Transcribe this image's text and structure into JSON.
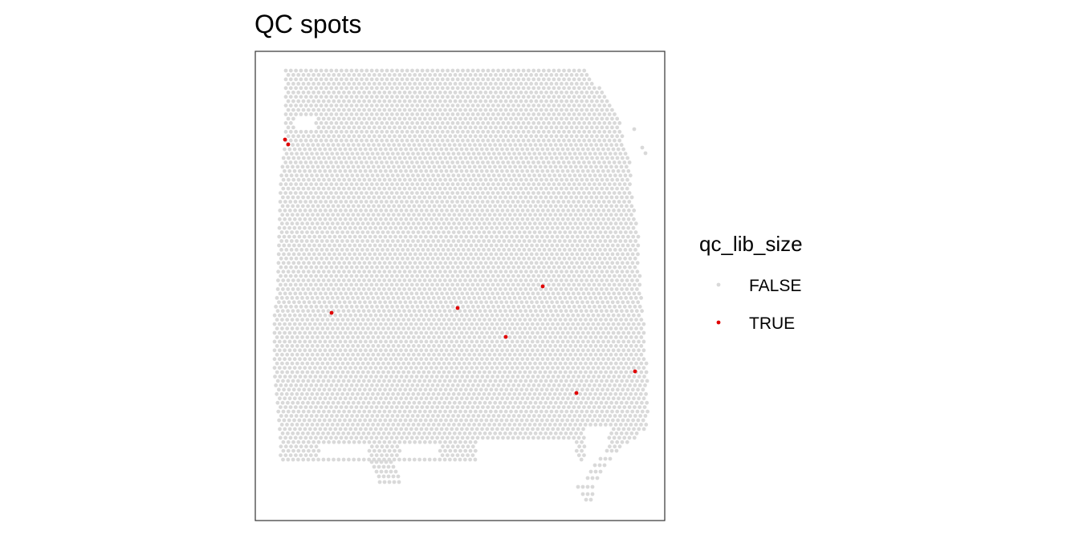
{
  "chart_data": {
    "type": "scatter",
    "title": "QC spots",
    "xlabel": "",
    "ylabel": "",
    "grid": false,
    "legend": {
      "title": "qc_lib_size",
      "placement": "right",
      "entries": [
        {
          "label": "FALSE",
          "color": "#d9d9d9"
        },
        {
          "label": "TRUE",
          "color": "#e00000"
        }
      ]
    },
    "series": [
      {
        "name": "FALSE",
        "color": "#d9d9d9",
        "description_points": "hexagonal array of spots covering the tissue (~2500 spots)"
      },
      {
        "name": "TRUE",
        "color": "#e00000",
        "points": [
          [
            37,
            110
          ],
          [
            41,
            116
          ],
          [
            95,
            326
          ],
          [
            252,
            320
          ],
          [
            358,
            293
          ],
          [
            312,
            356
          ],
          [
            400,
            426
          ],
          [
            473,
            399
          ]
        ]
      }
    ],
    "xlim": [
      0,
      510
    ],
    "ylim": [
      0,
      585
    ]
  }
}
